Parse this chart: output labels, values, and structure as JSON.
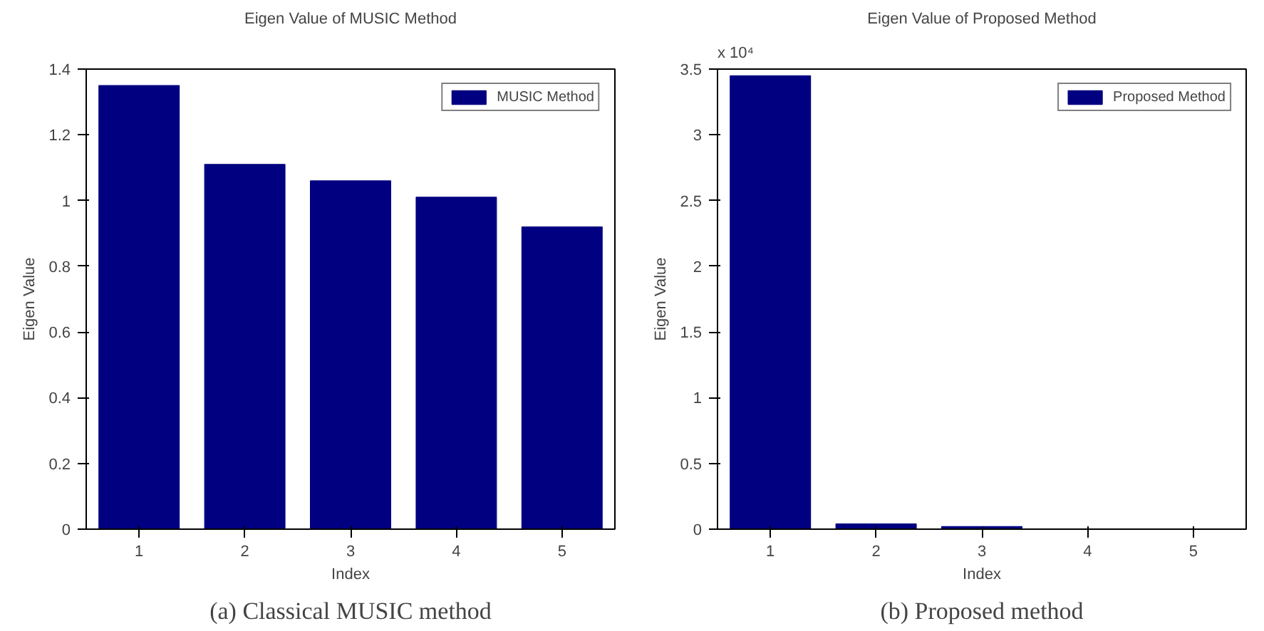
{
  "chart_data": [
    {
      "type": "bar",
      "title": "Eigen Value of MUSIC Method",
      "xlabel": "Index",
      "ylabel": "Eigen Value",
      "categories": [
        "1",
        "2",
        "3",
        "4",
        "5"
      ],
      "series": [
        {
          "name": "MUSIC Method",
          "color": "#000080",
          "values": [
            1.35,
            1.11,
            1.06,
            1.01,
            0.92
          ]
        }
      ],
      "ylim": [
        0,
        1.4
      ],
      "yticks": [
        0,
        0.2,
        0.4,
        0.6,
        0.8,
        1,
        1.2,
        1.4
      ],
      "grid": false,
      "legend": "top right",
      "annotations": [
        "(a) Classical MUSIC method"
      ]
    },
    {
      "type": "bar",
      "title": "Eigen Value of Proposed Method",
      "xlabel": "Index",
      "ylabel": "Eigen Value",
      "categories": [
        "1",
        "2",
        "3",
        "4",
        "5"
      ],
      "series": [
        {
          "name": "Proposed Method",
          "color": "#000080",
          "values": [
            3.45,
            0.04,
            0.02,
            0,
            0
          ]
        }
      ],
      "ylim": [
        0,
        3.5
      ],
      "yticks": [
        0,
        0.5,
        1,
        1.5,
        2,
        2.5,
        3,
        3.5
      ],
      "grid": false,
      "legend": "top right",
      "annotations": [
        "x 10⁴",
        "(b) Proposed method"
      ]
    }
  ]
}
